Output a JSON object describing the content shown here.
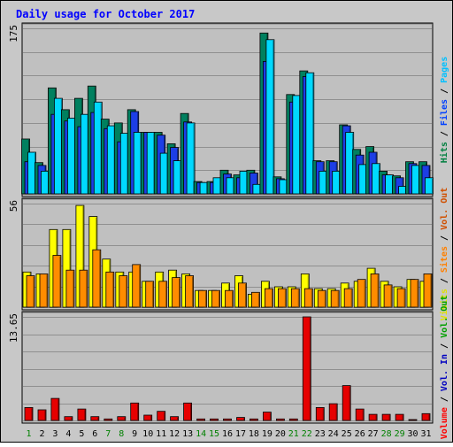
{
  "chart_data": {
    "type": "bar",
    "title": "Daily usage for October 2017",
    "days": [
      "1",
      "2",
      "3",
      "4",
      "5",
      "6",
      "7",
      "8",
      "9",
      "10",
      "11",
      "12",
      "13",
      "14",
      "15",
      "16",
      "17",
      "18",
      "19",
      "20",
      "21",
      "22",
      "23",
      "24",
      "25",
      "26",
      "27",
      "28",
      "29",
      "30",
      "31"
    ],
    "weekend_days": [
      "1",
      "7",
      "8",
      "14",
      "15",
      "21",
      "22",
      "28",
      "29"
    ],
    "panels": [
      {
        "name": "top",
        "axis_max_label": "175",
        "ymax": 175,
        "right_labels": [
          {
            "text": "Hits",
            "color": "#008040"
          },
          {
            "text": " / ",
            "color": "#000000"
          },
          {
            "text": "Files",
            "color": "#0040ff"
          },
          {
            "text": " / ",
            "color": "#000000"
          },
          {
            "text": "Pages",
            "color": "#00c0ff"
          }
        ],
        "series": [
          {
            "name": "Hits",
            "color": "#00805f",
            "values": [
              58,
              33,
              112,
              89,
              101,
              114,
              79,
              75,
              89,
              65,
              65,
              53,
              85,
              13,
              13,
              25,
              20,
              25,
              170,
              18,
              105,
              130,
              35,
              35,
              73,
              47,
              50,
              24,
              19,
              34,
              34
            ]
          },
          {
            "name": "Files",
            "color": "#1c3ee6",
            "values": [
              34,
              30,
              84,
              77,
              71,
              86,
              69,
              55,
              87,
              65,
              62,
              49,
              76,
              12,
              12,
              21,
              17,
              22,
              140,
              16,
              97,
              124,
              34,
              34,
              72,
              41,
              44,
              20,
              17,
              32,
              30
            ]
          },
          {
            "name": "Pages",
            "color": "#00d9ff",
            "values": [
              44,
              24,
              101,
              80,
              84,
              97,
              72,
              64,
              65,
              65,
              43,
              35,
              75,
              12,
              17,
              17,
              24,
              10,
              163,
              15,
              104,
              128,
              24,
              24,
              65,
              31,
              32,
              20,
              8,
              30,
              17
            ]
          }
        ]
      },
      {
        "name": "middle",
        "axis_max_label": "56",
        "ymax": 56,
        "right_labels": [
          {
            "text": "Visits",
            "color": "#e0e000"
          },
          {
            "text": " / ",
            "color": "#000000"
          },
          {
            "text": "Sites",
            "color": "#ff8000"
          },
          {
            "text": " / ",
            "color": "#000000"
          },
          {
            "text": "Vol. Out",
            "color": "#d05000"
          }
        ],
        "series": [
          {
            "name": "Visits",
            "color": "#ffff00",
            "values": [
              19,
              18,
              42,
              42,
              55,
              49,
              26,
              19,
              19,
              14,
              19,
              20,
              18,
              9,
              9,
              13,
              17,
              7,
              14,
              11,
              11,
              18,
              10,
              10,
              13,
              14,
              21,
              14,
              11,
              15,
              14
            ]
          },
          {
            "name": "Sites",
            "color": "#ff8c00",
            "values": [
              17,
              18,
              28,
              20,
              20,
              31,
              19,
              17,
              23,
              14,
              14,
              16,
              17,
              9,
              9,
              9,
              13,
              8,
              10,
              10,
              10,
              10,
              9,
              9,
              10,
              15,
              18,
              12,
              10,
              15,
              18
            ]
          }
        ]
      },
      {
        "name": "bottom",
        "axis_max_label": "13.65",
        "ymax": 13.65,
        "right_labels": [
          {
            "text": "Volume",
            "color": "#ff0000"
          },
          {
            "text": " / ",
            "color": "#000000"
          },
          {
            "text": "Vol. In",
            "color": "#0000c0"
          },
          {
            "text": " / ",
            "color": "#000000"
          },
          {
            "text": "Vol. Out",
            "color": "#00a000"
          }
        ],
        "series": [
          {
            "name": "Volume",
            "color": "#e60000",
            "values": [
              1.7,
              1.4,
              2.9,
              0.5,
              1.5,
              0.5,
              0.2,
              0.5,
              2.3,
              0.7,
              1.2,
              0.5,
              2.3,
              0.2,
              0.2,
              0.2,
              0.4,
              0.2,
              1.1,
              0.2,
              0.2,
              13.65,
              1.7,
              2.2,
              4.6,
              1.5,
              0.8,
              0.8,
              0.8,
              0.1,
              0.9
            ]
          }
        ]
      }
    ]
  }
}
